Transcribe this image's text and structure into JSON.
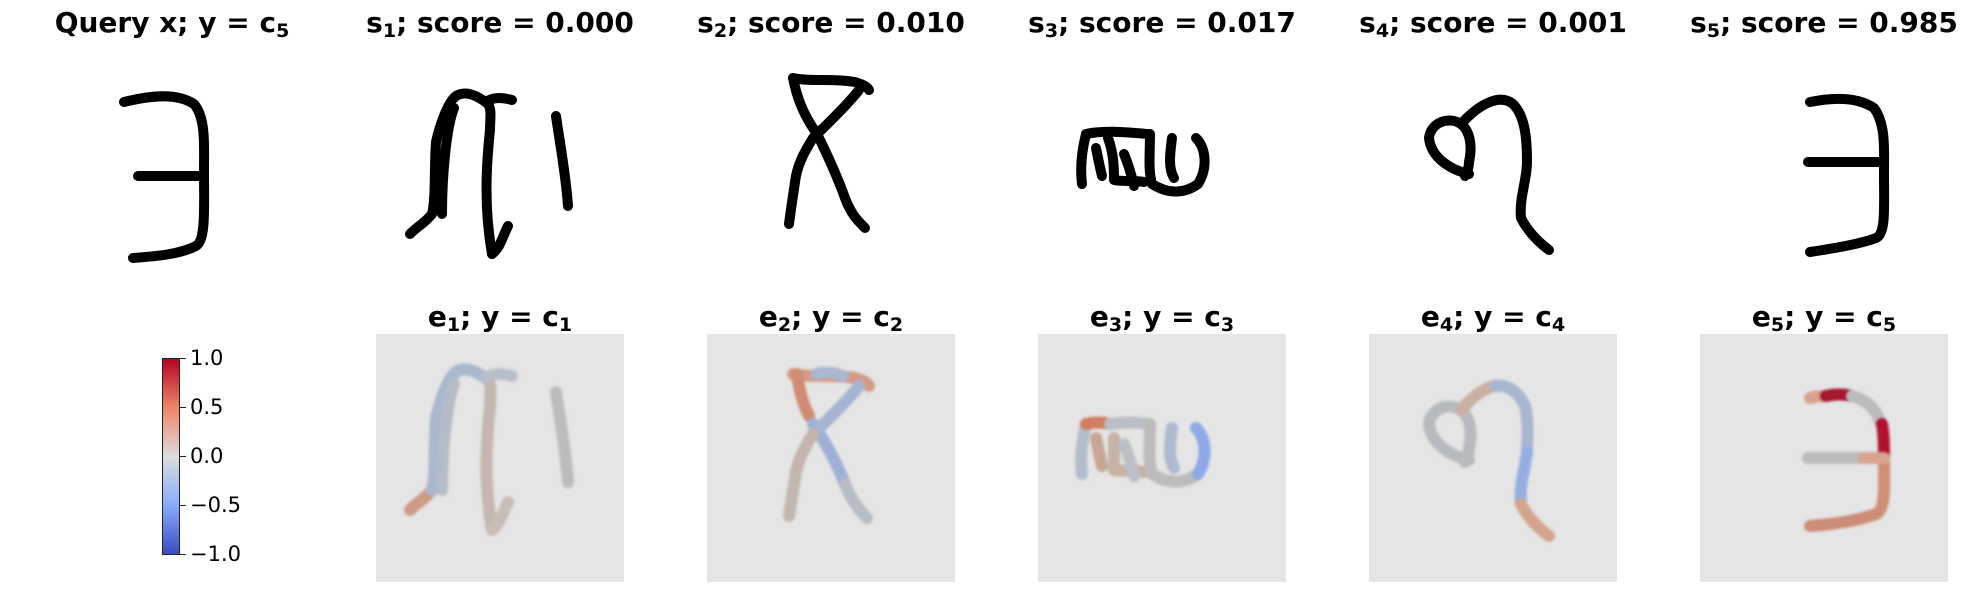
{
  "panels": [
    {
      "id": "query",
      "name": "Query x",
      "sub": "",
      "label": "y = c",
      "label_sub": "5"
    },
    {
      "id": "s1",
      "name": "s",
      "sub": "1",
      "label": "score = 0.000",
      "label_sub": ""
    },
    {
      "id": "s2",
      "name": "s",
      "sub": "2",
      "label": "score = 0.010",
      "label_sub": ""
    },
    {
      "id": "s3",
      "name": "s",
      "sub": "3",
      "label": "score = 0.017",
      "label_sub": ""
    },
    {
      "id": "s4",
      "name": "s",
      "sub": "4",
      "label": "score = 0.001",
      "label_sub": ""
    },
    {
      "id": "s5",
      "name": "s",
      "sub": "5",
      "label": "score = 0.985",
      "label_sub": ""
    }
  ],
  "explanations": [
    {
      "id": "e1",
      "name": "e",
      "sub": "1",
      "label": "y = c",
      "label_sub": "1"
    },
    {
      "id": "e2",
      "name": "e",
      "sub": "2",
      "label": "y = c",
      "label_sub": "2"
    },
    {
      "id": "e3",
      "name": "e",
      "sub": "3",
      "label": "y = c",
      "label_sub": "3"
    },
    {
      "id": "e4",
      "name": "e",
      "sub": "4",
      "label": "y = c",
      "label_sub": "4"
    },
    {
      "id": "e5",
      "name": "e",
      "sub": "5",
      "label": "y = c",
      "label_sub": "5"
    }
  ],
  "colorbar": {
    "ticks": [
      "1.0",
      "0.5",
      "0.0",
      "−0.5",
      "−1.0"
    ],
    "colors": {
      "max": "#b40426",
      "mid": "#dddcdc",
      "min": "#3b4cc0"
    }
  }
}
